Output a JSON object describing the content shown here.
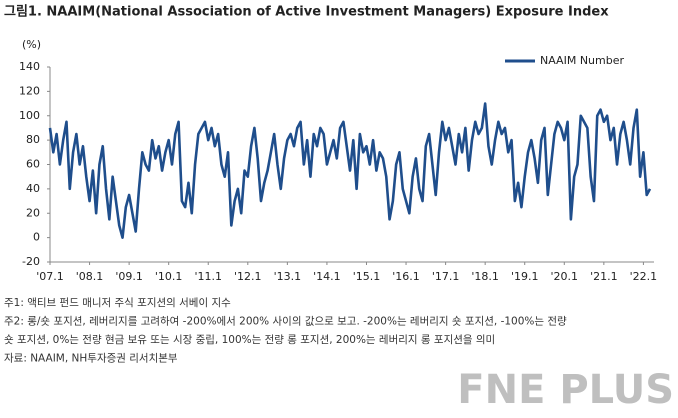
{
  "chart_data": {
    "type": "line",
    "title": "그림1. NAAIM(National Association of Active Investment Managers) Exposure Index",
    "y_unit": "(%)",
    "categories": [
      "'07.1",
      null,
      null,
      null,
      null,
      null,
      null,
      null,
      null,
      null,
      null,
      null,
      "'08.1",
      null,
      null,
      null,
      null,
      null,
      null,
      null,
      null,
      null,
      null,
      null,
      "'09.1",
      null,
      null,
      null,
      null,
      null,
      null,
      null,
      null,
      null,
      null,
      null,
      "'10.1",
      null,
      null,
      null,
      null,
      null,
      null,
      null,
      null,
      null,
      null,
      null,
      "'11.1",
      null,
      null,
      null,
      null,
      null,
      null,
      null,
      null,
      null,
      null,
      null,
      "'12.1",
      null,
      null,
      null,
      null,
      null,
      null,
      null,
      null,
      null,
      null,
      null,
      "'13.1",
      null,
      null,
      null,
      null,
      null,
      null,
      null,
      null,
      null,
      null,
      null,
      "'14.1",
      null,
      null,
      null,
      null,
      null,
      null,
      null,
      null,
      null,
      null,
      null,
      "'15.1",
      null,
      null,
      null,
      null,
      null,
      null,
      null,
      null,
      null,
      null,
      null,
      "'16.1",
      null,
      null,
      null,
      null,
      null,
      null,
      null,
      null,
      null,
      null,
      null,
      "'17.1",
      null,
      null,
      null,
      null,
      null,
      null,
      null,
      null,
      null,
      null,
      null,
      "'18.1",
      null,
      null,
      null,
      null,
      null,
      null,
      null,
      null,
      null,
      null,
      null,
      "'19.1",
      null,
      null,
      null,
      null,
      null,
      null,
      null,
      null,
      null,
      null,
      null,
      "'20.1",
      null,
      null,
      null,
      null,
      null,
      null,
      null,
      null,
      null,
      null,
      null,
      "'21.1",
      null,
      null,
      null,
      null,
      null,
      null,
      null,
      null,
      null,
      null,
      null,
      "'22.1",
      null,
      null
    ],
    "series": [
      {
        "name": "NAAIM Number",
        "color": "#1f4e8c",
        "values": [
          90,
          70,
          85,
          60,
          80,
          95,
          40,
          70,
          85,
          60,
          75,
          50,
          30,
          55,
          20,
          60,
          75,
          40,
          15,
          50,
          30,
          10,
          0,
          25,
          35,
          20,
          5,
          40,
          70,
          60,
          55,
          80,
          65,
          75,
          55,
          70,
          80,
          60,
          85,
          95,
          30,
          25,
          45,
          20,
          60,
          85,
          90,
          95,
          80,
          90,
          75,
          85,
          60,
          50,
          70,
          10,
          30,
          40,
          20,
          55,
          50,
          75,
          90,
          65,
          30,
          45,
          55,
          70,
          85,
          60,
          40,
          65,
          80,
          85,
          75,
          90,
          95,
          60,
          80,
          50,
          85,
          75,
          90,
          85,
          60,
          70,
          80,
          65,
          90,
          95,
          75,
          55,
          80,
          40,
          85,
          70,
          75,
          60,
          80,
          55,
          70,
          65,
          50,
          15,
          30,
          60,
          70,
          40,
          30,
          20,
          50,
          65,
          40,
          30,
          75,
          85,
          60,
          35,
          70,
          95,
          80,
          90,
          75,
          60,
          85,
          70,
          90,
          55,
          80,
          95,
          85,
          90,
          110,
          75,
          60,
          80,
          95,
          85,
          90,
          70,
          80,
          30,
          45,
          25,
          50,
          70,
          80,
          65,
          45,
          80,
          90,
          35,
          60,
          85,
          95,
          90,
          80,
          95,
          15,
          50,
          60,
          100,
          95,
          90,
          50,
          30,
          100,
          105,
          95,
          100,
          80,
          90,
          60,
          85,
          95,
          80,
          60,
          90,
          105,
          50,
          70,
          35,
          40
        ]
      }
    ],
    "ylim": [
      -20,
      140
    ],
    "yticks": [
      -20,
      0,
      20,
      40,
      60,
      80,
      100,
      120,
      140
    ],
    "grid": false,
    "legend": "top-right",
    "notes": [
      "주1: 액티브 펀드 매니저 주식 포지션의 서베이 지수",
      "주2: 롱/숏 포지션, 레버리지를 고려하여 -200%에서 200% 사이의 값으로 보고. -200%는 레버리지 숏 포지션, -100%는 전량",
      "숏 포지션, 0%는 전량 현금 보유 또는 시장 중립, 100%는 전량 롱 포지션, 200%는 레버리지 롱 포지션을 의미",
      "자료: NAAIM, NH투자증권 리서치본부"
    ],
    "watermark": "FNE PLUS"
  }
}
